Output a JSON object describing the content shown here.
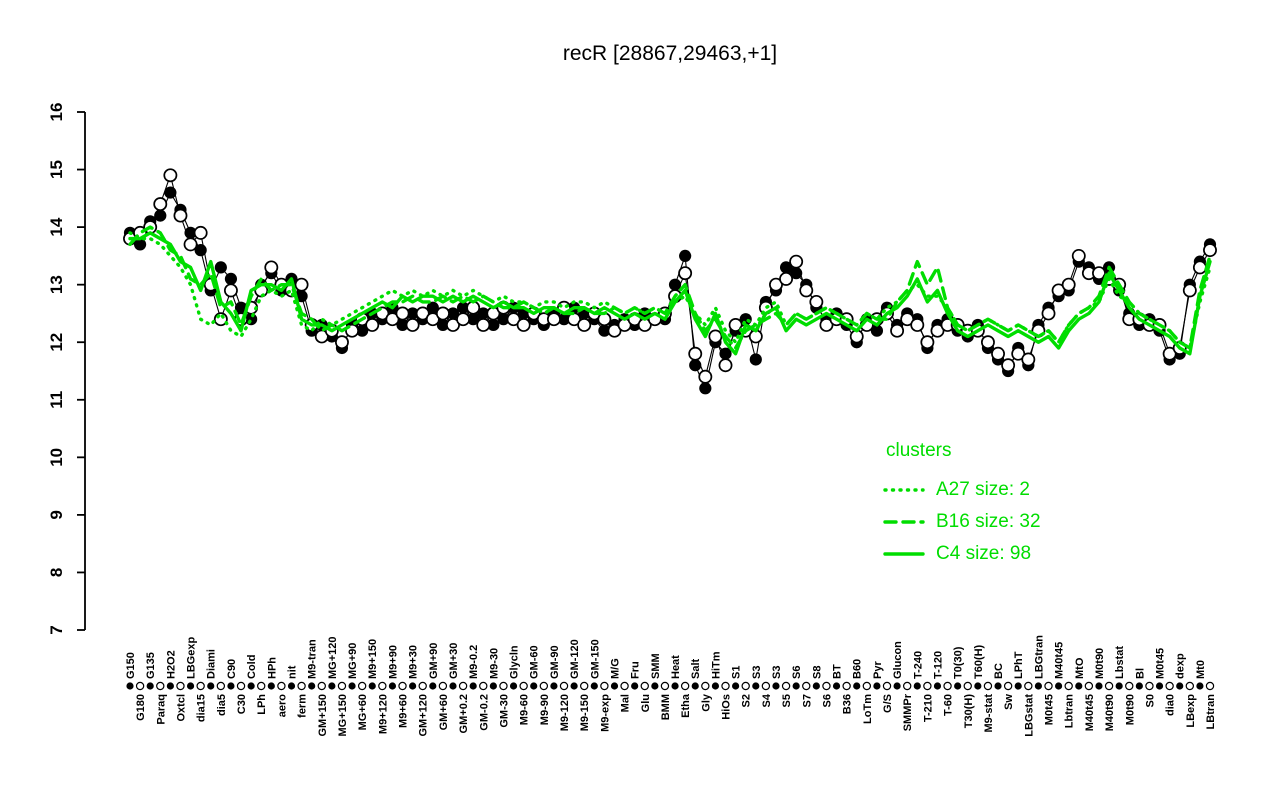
{
  "title": "recR [28867,29463,+1]",
  "legend": {
    "header": "clusters",
    "color": "#00DD00",
    "entries": [
      {
        "label": "A27 size: 2",
        "style": "dotted"
      },
      {
        "label": "B16 size: 32",
        "style": "dashed"
      },
      {
        "label": "C4 size: 98",
        "style": "solid"
      }
    ]
  },
  "chart_data": {
    "type": "line",
    "title": "recR [28867,29463,+1]",
    "xlabel": "",
    "ylabel": "",
    "ylim": [
      7,
      16
    ],
    "y_ticks": [
      7,
      8,
      9,
      10,
      11,
      12,
      13,
      14,
      15,
      16
    ],
    "grid": false,
    "legend_position": "right-middle",
    "categories": [
      "G150",
      "G180",
      "G135",
      "Paraq",
      "H2O2",
      "Oxtcl",
      "LBGexp",
      "dia15",
      "Diami",
      "dia5",
      "C90",
      "C30",
      "Cold",
      "LPh",
      "HPh",
      "aero",
      "nit",
      "ferm",
      "M9-tran",
      "GM+150",
      "MG+120",
      "MG+150",
      "MG+90",
      "MG+60",
      "M9+150",
      "M9+120",
      "M9+90",
      "M9+60",
      "M9+30",
      "GM+120",
      "GM+90",
      "GM+60",
      "GM+30",
      "GM+0.2",
      "M9-0.2",
      "GM-0.2",
      "M9-30",
      "GM-30",
      "Glycln",
      "M9-60",
      "GM-60",
      "M9-90",
      "GM-90",
      "M9-120",
      "GM-120",
      "M9-150",
      "GM-150",
      "M9-exp",
      "M/G",
      "Mal",
      "Fru",
      "Glu",
      "SMM",
      "BMM",
      "Heat",
      "Etha",
      "Salt",
      "Gly",
      "HiTm",
      "HiOs",
      "S1",
      "S2",
      "S3",
      "S4",
      "S3",
      "S5",
      "S6",
      "S7",
      "S8",
      "S6",
      "BT",
      "B36",
      "B60",
      "LoTm",
      "Pyr",
      "G/S",
      "Glucon",
      "SMMPr",
      "T-240",
      "T-210",
      "T-120",
      "T-60",
      "T0(30)",
      "T30(H)",
      "T60(H)",
      "M9-stat",
      "BC",
      "Sw",
      "LPhT",
      "LBGstat",
      "LBGtran",
      "M0t45",
      "M40t45",
      "Lbtran",
      "MtO",
      "M40t45",
      "M0t90",
      "M40t90",
      "Lbstat",
      "M0t90",
      "Bl",
      "S0",
      "M0t45",
      "dia0",
      "dexp",
      "LBexp",
      "Mt0",
      "LBtran"
    ],
    "series": [
      {
        "name": "A27",
        "role": "cluster-mean",
        "size": 2,
        "style": "dotted",
        "color": "#00DD00",
        "values": [
          13.9,
          13.8,
          13.8,
          13.7,
          13.5,
          13.3,
          13.0,
          12.4,
          12.3,
          12.5,
          12.2,
          12.1,
          12.4,
          12.8,
          12.9,
          12.8,
          12.9,
          12.3,
          12.2,
          12.4,
          12.3,
          12.4,
          12.5,
          12.6,
          12.7,
          12.8,
          12.9,
          12.8,
          12.9,
          12.8,
          12.9,
          12.8,
          12.9,
          12.8,
          12.9,
          12.8,
          12.7,
          12.8,
          12.7,
          12.7,
          12.6,
          12.7,
          12.7,
          12.6,
          12.7,
          12.7,
          12.6,
          12.7,
          12.6,
          12.5,
          12.6,
          12.5,
          12.6,
          12.5,
          12.7,
          12.8,
          12.5,
          12.3,
          12.6,
          12.2,
          12.0,
          12.4,
          12.3,
          12.6,
          12.7,
          12.3,
          12.5,
          12.4,
          12.5,
          12.6,
          12.5,
          12.4,
          12.3,
          12.5,
          12.4,
          12.6,
          12.7,
          12.9,
          13.0,
          12.8,
          12.8,
          12.6,
          12.3,
          12.2,
          12.3,
          12.4,
          12.3,
          12.2,
          12.3,
          12.2,
          12.1,
          12.2,
          12.0,
          12.3,
          12.5,
          12.6,
          12.7,
          13.1,
          12.8,
          12.7,
          12.5,
          12.4,
          12.3,
          12.2,
          12.0,
          11.9,
          12.7,
          13.3
        ]
      },
      {
        "name": "B16",
        "role": "cluster-mean",
        "size": 32,
        "style": "dashed",
        "color": "#00DD00",
        "values": [
          13.7,
          13.9,
          14.0,
          13.9,
          13.6,
          13.5,
          13.1,
          13.0,
          13.2,
          12.6,
          12.7,
          12.3,
          12.8,
          13.1,
          12.9,
          13.0,
          13.0,
          12.5,
          12.4,
          12.2,
          12.3,
          12.2,
          12.3,
          12.4,
          12.5,
          12.6,
          12.7,
          12.7,
          12.8,
          12.7,
          12.7,
          12.8,
          12.7,
          12.8,
          12.7,
          12.8,
          12.7,
          12.6,
          12.6,
          12.7,
          12.6,
          12.5,
          12.6,
          12.5,
          12.5,
          12.6,
          12.5,
          12.5,
          12.6,
          12.5,
          12.6,
          12.5,
          12.6,
          12.5,
          12.8,
          13.0,
          12.5,
          12.2,
          12.4,
          12.1,
          11.9,
          12.2,
          12.3,
          12.4,
          12.5,
          12.3,
          12.5,
          12.4,
          12.5,
          12.6,
          12.5,
          12.4,
          12.3,
          12.5,
          12.4,
          12.4,
          12.7,
          12.9,
          13.4,
          13.0,
          13.3,
          12.6,
          12.3,
          12.2,
          12.3,
          12.4,
          12.3,
          12.2,
          12.3,
          12.2,
          12.1,
          12.2,
          12.0,
          12.3,
          12.5,
          12.6,
          12.8,
          13.3,
          13.0,
          12.7,
          12.5,
          12.4,
          12.3,
          12.2,
          12.0,
          11.9,
          12.9,
          13.5
        ]
      },
      {
        "name": "C4",
        "role": "cluster-mean",
        "size": 98,
        "style": "solid",
        "color": "#00DD00",
        "values": [
          13.8,
          13.8,
          13.9,
          13.8,
          13.7,
          13.4,
          13.3,
          12.9,
          13.4,
          12.7,
          12.5,
          12.2,
          12.9,
          13.0,
          13.0,
          12.9,
          13.1,
          12.4,
          12.3,
          12.3,
          12.2,
          12.3,
          12.4,
          12.5,
          12.6,
          12.7,
          12.6,
          12.8,
          12.7,
          12.8,
          12.8,
          12.7,
          12.8,
          12.7,
          12.8,
          12.7,
          12.6,
          12.7,
          12.6,
          12.6,
          12.5,
          12.6,
          12.6,
          12.5,
          12.6,
          12.6,
          12.5,
          12.6,
          12.5,
          12.4,
          12.5,
          12.4,
          12.5,
          12.4,
          12.7,
          12.9,
          12.4,
          12.1,
          12.5,
          12.0,
          11.8,
          12.3,
          12.2,
          12.5,
          12.6,
          12.2,
          12.4,
          12.3,
          12.4,
          12.5,
          12.4,
          12.3,
          12.2,
          12.4,
          12.3,
          12.5,
          12.6,
          12.8,
          13.1,
          12.7,
          12.9,
          12.5,
          12.2,
          12.1,
          12.2,
          12.3,
          12.2,
          12.1,
          12.2,
          12.1,
          12.0,
          12.1,
          11.9,
          12.2,
          12.4,
          12.5,
          12.7,
          13.2,
          12.9,
          12.6,
          12.4,
          12.3,
          12.2,
          12.1,
          11.9,
          11.8,
          12.8,
          13.4
        ]
      },
      {
        "name": "recR-filled",
        "role": "gene-profile",
        "style": "line+filled-circles",
        "color": "#000000",
        "values": [
          13.9,
          13.7,
          14.1,
          14.2,
          14.6,
          14.3,
          13.9,
          13.6,
          12.9,
          13.3,
          13.1,
          12.6,
          12.4,
          13.0,
          13.2,
          12.9,
          13.1,
          12.8,
          12.2,
          12.3,
          12.1,
          11.9,
          12.3,
          12.2,
          12.5,
          12.4,
          12.6,
          12.3,
          12.5,
          12.4,
          12.6,
          12.3,
          12.5,
          12.6,
          12.4,
          12.5,
          12.3,
          12.4,
          12.6,
          12.5,
          12.4,
          12.3,
          12.5,
          12.4,
          12.6,
          12.5,
          12.4,
          12.2,
          12.3,
          12.4,
          12.3,
          12.5,
          12.4,
          12.4,
          13.0,
          13.5,
          11.6,
          11.2,
          12.0,
          11.8,
          12.2,
          12.4,
          11.7,
          12.7,
          12.9,
          13.3,
          13.2,
          13.0,
          12.6,
          12.4,
          12.5,
          12.3,
          12.0,
          12.4,
          12.2,
          12.6,
          12.3,
          12.5,
          12.4,
          11.9,
          12.3,
          12.4,
          12.2,
          12.1,
          12.3,
          11.9,
          11.7,
          11.5,
          11.9,
          11.6,
          12.3,
          12.6,
          12.8,
          12.9,
          13.4,
          13.3,
          13.1,
          13.3,
          12.9,
          12.5,
          12.3,
          12.4,
          12.2,
          11.7,
          11.8,
          13.0,
          13.4,
          13.7
        ]
      },
      {
        "name": "recR-open",
        "role": "gene-profile",
        "style": "line+open-circles",
        "color": "#000000",
        "values": [
          13.8,
          13.9,
          14.0,
          14.4,
          14.9,
          14.2,
          13.7,
          13.9,
          13.0,
          12.4,
          12.9,
          12.4,
          12.6,
          12.9,
          13.3,
          13.0,
          12.9,
          13.0,
          12.3,
          12.1,
          12.2,
          12.0,
          12.2,
          12.4,
          12.3,
          12.5,
          12.4,
          12.5,
          12.3,
          12.5,
          12.4,
          12.5,
          12.3,
          12.4,
          12.6,
          12.3,
          12.5,
          12.6,
          12.4,
          12.3,
          12.5,
          12.4,
          12.4,
          12.6,
          12.4,
          12.3,
          12.5,
          12.4,
          12.2,
          12.3,
          12.4,
          12.3,
          12.4,
          12.5,
          12.8,
          13.2,
          11.8,
          11.4,
          12.1,
          11.6,
          12.3,
          12.2,
          12.1,
          12.6,
          13.0,
          13.1,
          13.4,
          12.9,
          12.7,
          12.3,
          12.4,
          12.4,
          12.1,
          12.3,
          12.4,
          12.5,
          12.2,
          12.4,
          12.3,
          12.0,
          12.2,
          12.3,
          12.3,
          12.2,
          12.2,
          12.0,
          11.8,
          11.6,
          11.8,
          11.7,
          12.2,
          12.5,
          12.9,
          13.0,
          13.5,
          13.2,
          13.2,
          13.1,
          13.0,
          12.4,
          12.4,
          12.3,
          12.3,
          11.8,
          11.9,
          12.9,
          13.3,
          13.6
        ]
      }
    ]
  }
}
